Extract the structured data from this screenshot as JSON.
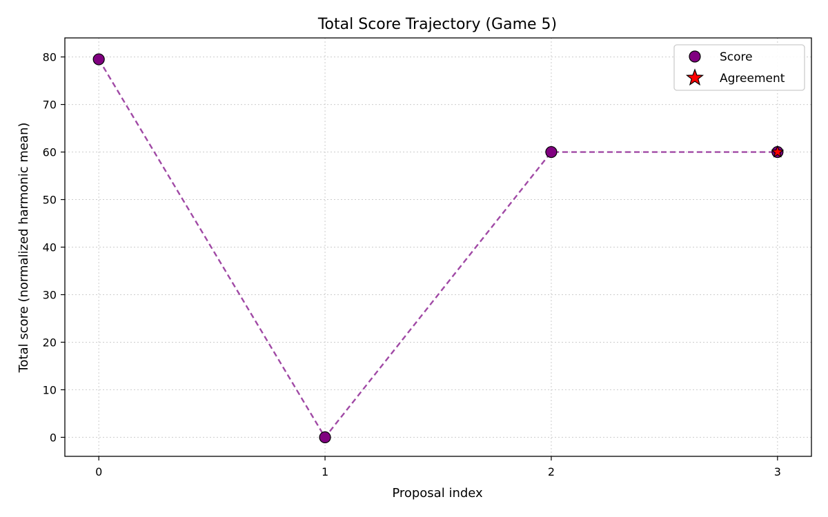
{
  "chart_data": {
    "type": "line",
    "title": "Total Score Trajectory (Game 5)",
    "xlabel": "Proposal index",
    "ylabel": "Total score (normalized harmonic mean)",
    "x": [
      0,
      1,
      2,
      3
    ],
    "xticks": [
      "0",
      "1",
      "2",
      "3"
    ],
    "xlim": [
      -0.15,
      3.15
    ],
    "yticks": [
      0,
      10,
      20,
      30,
      40,
      50,
      60,
      70,
      80
    ],
    "ylim": [
      -4,
      84
    ],
    "grid": true,
    "legend_position": "top-right",
    "series": [
      {
        "name": "Score",
        "values": [
          79.5,
          0,
          60,
          60
        ],
        "line_color": "#9b3fa0",
        "line_style": "dashed",
        "marker": "circle",
        "marker_color": "#800080"
      },
      {
        "name": "Agreement",
        "x": [
          3
        ],
        "values": [
          60
        ],
        "marker": "star",
        "marker_color": "#ff0000"
      }
    ]
  }
}
